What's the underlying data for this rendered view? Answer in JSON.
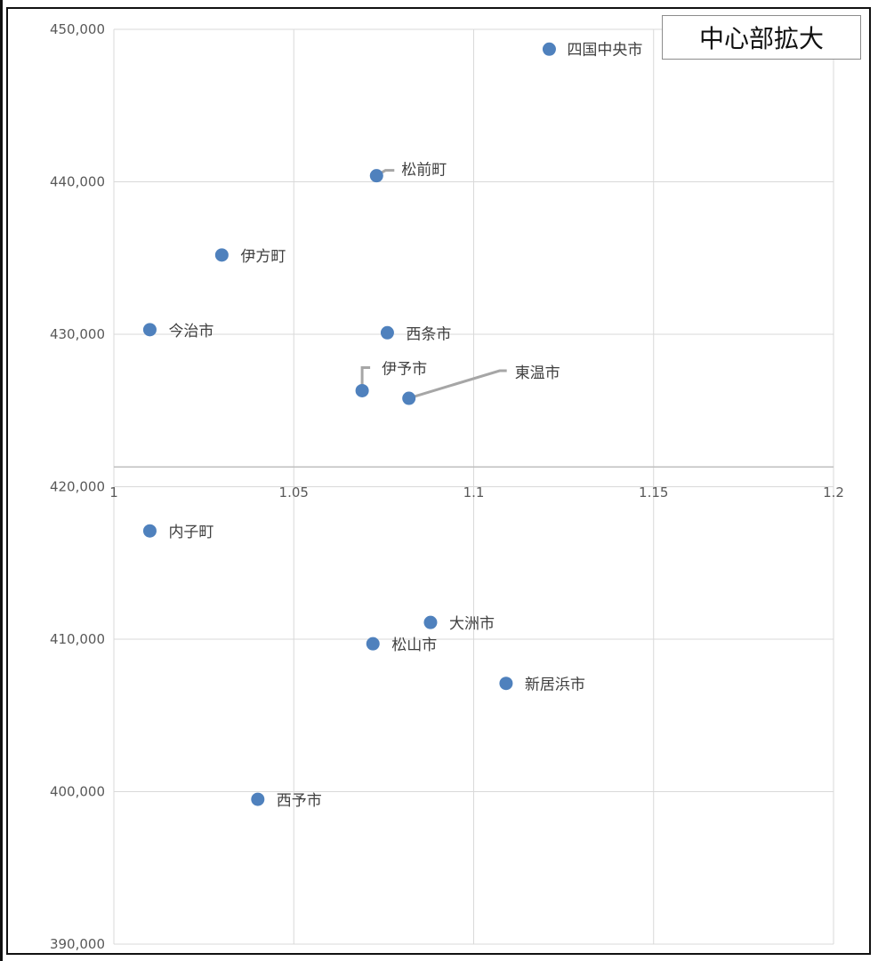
{
  "badge": "中心部拡大",
  "colors": {
    "point": "#4F81BD",
    "grid": "#d9d9d9",
    "leader": "#a6a6a6",
    "axis": "#bfbfbf"
  },
  "chart_data": {
    "type": "scatter",
    "title": "",
    "xlabel": "",
    "ylabel": "",
    "xlim": [
      1,
      1.2
    ],
    "ylim": [
      390000,
      450000
    ],
    "x_ticks": [
      1,
      1.05,
      1.1,
      1.15,
      1.2
    ],
    "x_tick_labels": [
      "1",
      "1.05",
      "1.1",
      "1.15",
      "1.2"
    ],
    "y_ticks": [
      390000,
      400000,
      410000,
      420000,
      430000,
      440000,
      450000
    ],
    "y_tick_labels": [
      "390,000",
      "400,000",
      "410,000",
      "420,000",
      "430,000",
      "440,000",
      "450,000"
    ],
    "x_axis_crosses_at": 421300,
    "grid": true,
    "legend": "none",
    "points": [
      {
        "label": "四国中央市",
        "x": 1.121,
        "y": 448700
      },
      {
        "label": "松前町",
        "x": 1.073,
        "y": 440400
      },
      {
        "label": "伊方町",
        "x": 1.03,
        "y": 435200
      },
      {
        "label": "今治市",
        "x": 1.01,
        "y": 430300
      },
      {
        "label": "西条市",
        "x": 1.076,
        "y": 430100
      },
      {
        "label": "伊予市",
        "x": 1.069,
        "y": 426300
      },
      {
        "label": "東温市",
        "x": 1.082,
        "y": 425800
      },
      {
        "label": "内子町",
        "x": 1.01,
        "y": 417100
      },
      {
        "label": "大洲市",
        "x": 1.088,
        "y": 411100
      },
      {
        "label": "松山市",
        "x": 1.072,
        "y": 409700
      },
      {
        "label": "新居浜市",
        "x": 1.109,
        "y": 407100
      },
      {
        "label": "西予市",
        "x": 1.04,
        "y": 399500
      }
    ]
  }
}
